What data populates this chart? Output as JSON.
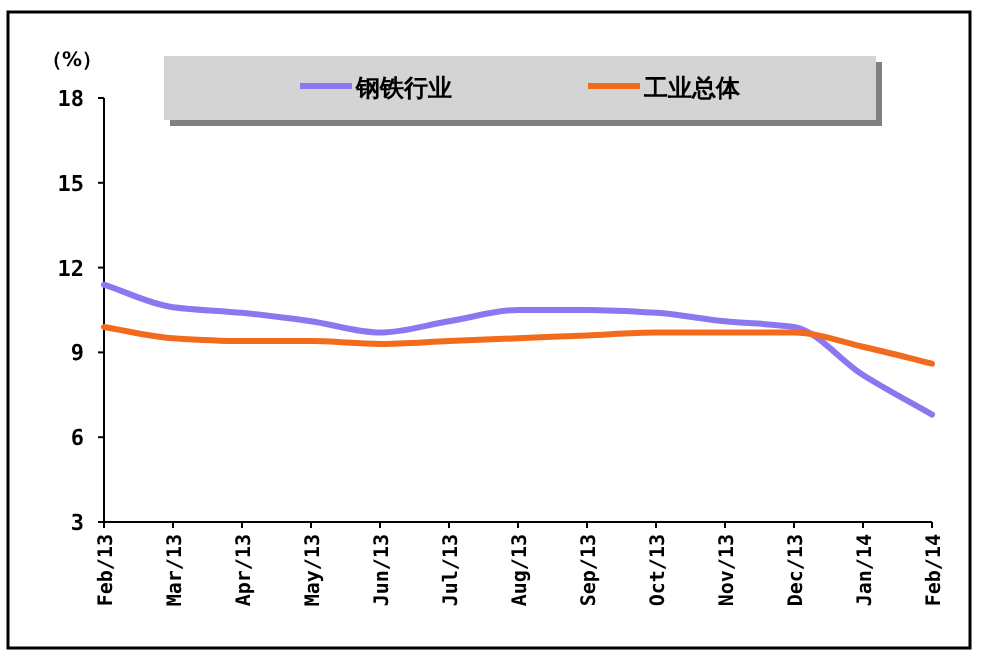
{
  "chart_data": {
    "type": "line",
    "ylabel": "（%）",
    "categories": [
      "Feb/13",
      "Mar/13",
      "Apr/13",
      "May/13",
      "Jun/13",
      "Jul/13",
      "Aug/13",
      "Sep/13",
      "Oct/13",
      "Nov/13",
      "Dec/13",
      "Jan/14",
      "Feb/14"
    ],
    "series": [
      {
        "name": "钢铁行业",
        "color": "#8b78f0",
        "values": [
          11.4,
          10.6,
          10.4,
          10.1,
          9.7,
          10.1,
          10.5,
          10.5,
          10.4,
          10.1,
          9.9,
          8.2,
          6.8
        ]
      },
      {
        "name": "工业总体",
        "color": "#f26b1d",
        "values": [
          9.9,
          9.5,
          9.4,
          9.4,
          9.3,
          9.4,
          9.5,
          9.6,
          9.7,
          9.7,
          9.7,
          9.2,
          8.6
        ]
      }
    ],
    "ylim": [
      3,
      18
    ],
    "yticks": [
      3,
      6,
      9,
      12,
      15,
      18
    ],
    "grid": false,
    "legend": "top",
    "marker": "none",
    "line_style": "solid"
  }
}
